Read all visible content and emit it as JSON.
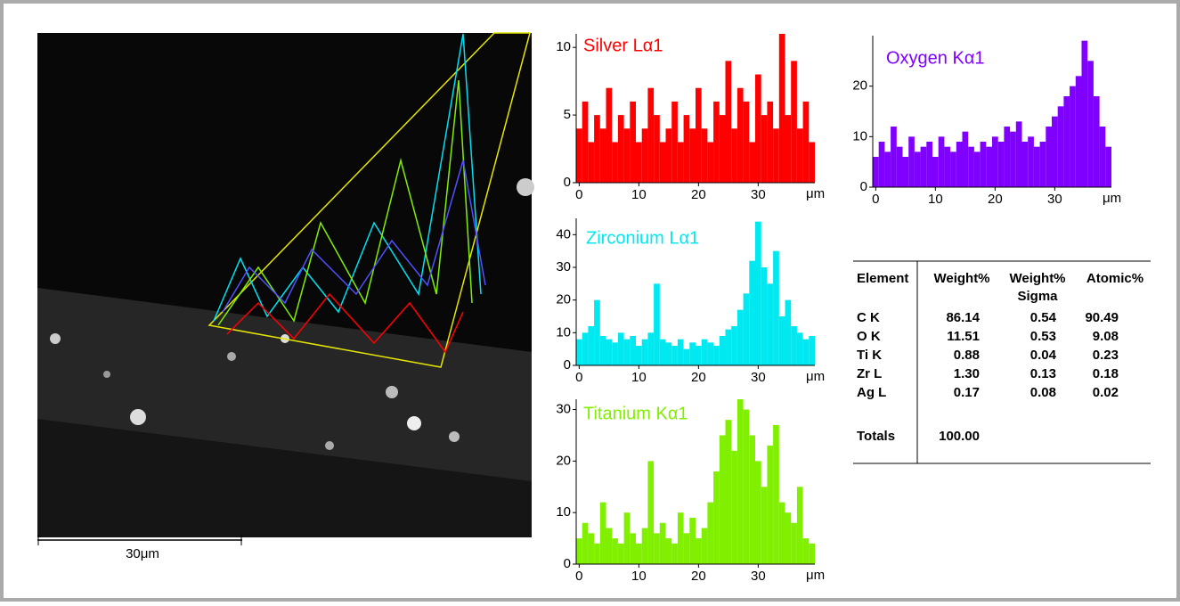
{
  "image": {
    "scale_bar": "30μm"
  },
  "chart_data": [
    {
      "type": "bar",
      "title": "Silver Lα1",
      "x_label": "μm",
      "color": "#ff0000",
      "x": [
        0,
        1,
        2,
        3,
        4,
        5,
        6,
        7,
        8,
        9,
        10,
        11,
        12,
        13,
        14,
        15,
        16,
        17,
        18,
        19,
        20,
        21,
        22,
        23,
        24,
        25,
        26,
        27,
        28,
        29,
        30,
        31,
        32,
        33,
        34,
        35,
        36,
        37,
        38,
        39
      ],
      "values": [
        4,
        6,
        3,
        5,
        4,
        7,
        3,
        5,
        4,
        6,
        3,
        4,
        7,
        5,
        3,
        4,
        6,
        3,
        5,
        4,
        7,
        4,
        3,
        6,
        5,
        9,
        4,
        7,
        6,
        3,
        8,
        5,
        6,
        4,
        11,
        5,
        9,
        4,
        6,
        3
      ],
      "xlim": [
        -0.5,
        39.5
      ],
      "ylim": [
        0,
        11
      ],
      "xticks": [
        0,
        10,
        20,
        30
      ],
      "yticks": [
        0,
        5,
        10
      ]
    },
    {
      "type": "bar",
      "title": "Zirconium Lα1",
      "x_label": "μm",
      "color": "#00e8f0",
      "x": [
        0,
        1,
        2,
        3,
        4,
        5,
        6,
        7,
        8,
        9,
        10,
        11,
        12,
        13,
        14,
        15,
        16,
        17,
        18,
        19,
        20,
        21,
        22,
        23,
        24,
        25,
        26,
        27,
        28,
        29,
        30,
        31,
        32,
        33,
        34,
        35,
        36,
        37,
        38,
        39
      ],
      "values": [
        8,
        10,
        12,
        20,
        9,
        8,
        7,
        10,
        8,
        9,
        6,
        8,
        10,
        25,
        8,
        7,
        6,
        8,
        5,
        7,
        6,
        8,
        7,
        6,
        9,
        11,
        12,
        17,
        22,
        32,
        44,
        30,
        25,
        35,
        15,
        20,
        12,
        10,
        8,
        9
      ],
      "xlim": [
        -0.5,
        39.5
      ],
      "ylim": [
        0,
        45
      ],
      "xticks": [
        0,
        10,
        20,
        30
      ],
      "yticks": [
        0,
        10,
        20,
        30,
        40
      ]
    },
    {
      "type": "bar",
      "title": "Titanium Kα1",
      "x_label": "μm",
      "color": "#80f000",
      "x": [
        0,
        1,
        2,
        3,
        4,
        5,
        6,
        7,
        8,
        9,
        10,
        11,
        12,
        13,
        14,
        15,
        16,
        17,
        18,
        19,
        20,
        21,
        22,
        23,
        24,
        25,
        26,
        27,
        28,
        29,
        30,
        31,
        32,
        33,
        34,
        35,
        36,
        37,
        38,
        39
      ],
      "values": [
        5,
        8,
        6,
        4,
        12,
        7,
        5,
        4,
        10,
        6,
        4,
        7,
        20,
        6,
        8,
        5,
        4,
        10,
        6,
        9,
        5,
        7,
        12,
        18,
        25,
        28,
        22,
        32,
        30,
        25,
        20,
        15,
        23,
        27,
        12,
        10,
        8,
        15,
        5,
        4
      ],
      "xlim": [
        -0.5,
        39.5
      ],
      "ylim": [
        0,
        32
      ],
      "xticks": [
        0,
        10,
        20,
        30
      ],
      "yticks": [
        0,
        10,
        20,
        30
      ]
    },
    {
      "type": "bar",
      "title": "Oxygen Kα1",
      "x_label": "μm",
      "color": "#7f00ff",
      "x": [
        0,
        1,
        2,
        3,
        4,
        5,
        6,
        7,
        8,
        9,
        10,
        11,
        12,
        13,
        14,
        15,
        16,
        17,
        18,
        19,
        20,
        21,
        22,
        23,
        24,
        25,
        26,
        27,
        28,
        29,
        30,
        31,
        32,
        33,
        34,
        35,
        36,
        37,
        38,
        39
      ],
      "values": [
        6,
        9,
        7,
        12,
        8,
        6,
        10,
        7,
        8,
        9,
        6,
        10,
        8,
        7,
        9,
        11,
        8,
        7,
        9,
        8,
        10,
        9,
        12,
        11,
        13,
        9,
        10,
        8,
        9,
        12,
        14,
        16,
        18,
        20,
        22,
        29,
        25,
        18,
        12,
        8
      ],
      "xlim": [
        -0.5,
        39.5
      ],
      "ylim": [
        0,
        30
      ],
      "xticks": [
        0,
        10,
        20,
        30
      ],
      "yticks": [
        0,
        10,
        20
      ]
    }
  ],
  "table": {
    "columns": [
      {
        "label": "Element"
      },
      {
        "label": "Weight%"
      },
      {
        "label": "Weight%",
        "sublabel": "Sigma"
      },
      {
        "label": "Atomic%"
      }
    ],
    "rows": [
      [
        "C K",
        "86.14",
        "0.54",
        "90.49"
      ],
      [
        "O K",
        "11.51",
        "0.53",
        "9.08"
      ],
      [
        "Ti K",
        "0.88",
        "0.04",
        "0.23"
      ],
      [
        "Zr L",
        "1.30",
        "0.13",
        "0.18"
      ],
      [
        "Ag L",
        "0.17",
        "0.08",
        "0.02"
      ]
    ],
    "totals": [
      "Totals",
      "100.00"
    ]
  }
}
